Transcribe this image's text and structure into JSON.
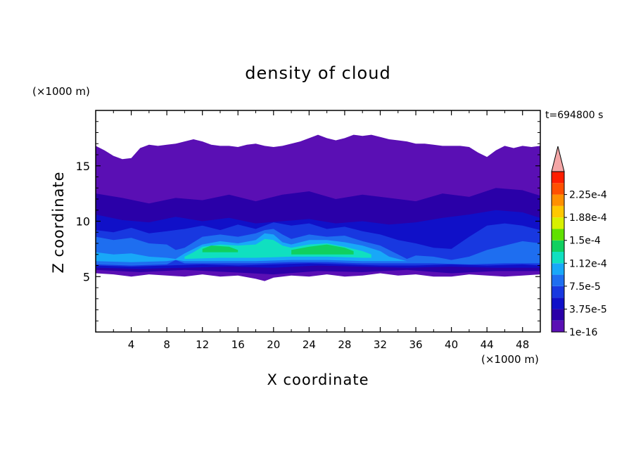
{
  "chart_data": {
    "type": "heatmap",
    "title": "density of cloud",
    "xlabel": "X coordinate",
    "ylabel": "Z coordinate",
    "x_unit": "(×1000 m)",
    "y_unit": "(×1000 m)",
    "time_label": "t=694800 s",
    "xlim": [
      0,
      50
    ],
    "ylim": [
      0,
      20
    ],
    "x_ticks": [
      4,
      8,
      12,
      16,
      20,
      24,
      28,
      32,
      36,
      40,
      44,
      48
    ],
    "y_ticks": [
      5,
      10,
      15
    ],
    "colorbar": {
      "levels": [
        1e-16,
        1.875e-05,
        3.75e-05,
        5.625e-05,
        7.5e-05,
        9.375e-05,
        0.0001125,
        0.00013125,
        0.00015,
        0.00016875,
        0.0001875,
        0.00020625,
        0.000225,
        0.00024375
      ],
      "tick_labels": [
        "1e-16",
        "3.75e-5",
        "7.5e-5",
        "1.12e-4",
        "1.5e-4",
        "1.88e-4",
        "2.25e-4"
      ],
      "colors": [
        "#5a0fb4",
        "#2a00a8",
        "#1010c8",
        "#1838e0",
        "#1e6ef0",
        "#18a8f8",
        "#10e0c0",
        "#10d060",
        "#60e000",
        "#d8f000",
        "#ffc800",
        "#ff9000",
        "#ff5000",
        "#ff1e00"
      ],
      "overflow_color": "#f4a6a6",
      "extend": "max"
    },
    "layers": [
      {
        "level_index": 0,
        "top": [
          [
            0,
            16.8
          ],
          [
            1,
            16.4
          ],
          [
            2,
            15.9
          ],
          [
            3,
            15.6
          ],
          [
            4,
            15.7
          ],
          [
            5,
            16.6
          ],
          [
            6,
            16.9
          ],
          [
            7,
            16.8
          ],
          [
            8,
            16.9
          ],
          [
            9,
            17.0
          ],
          [
            10,
            17.2
          ],
          [
            11,
            17.4
          ],
          [
            12,
            17.2
          ],
          [
            13,
            16.9
          ],
          [
            14,
            16.8
          ],
          [
            15,
            16.8
          ],
          [
            16,
            16.7
          ],
          [
            17,
            16.9
          ],
          [
            18,
            17.0
          ],
          [
            19,
            16.8
          ],
          [
            20,
            16.7
          ],
          [
            21,
            16.8
          ],
          [
            22,
            17.0
          ],
          [
            23,
            17.2
          ],
          [
            24,
            17.5
          ],
          [
            25,
            17.8
          ],
          [
            26,
            17.5
          ],
          [
            27,
            17.3
          ],
          [
            28,
            17.5
          ],
          [
            29,
            17.8
          ],
          [
            30,
            17.7
          ],
          [
            31,
            17.8
          ],
          [
            32,
            17.6
          ],
          [
            33,
            17.4
          ],
          [
            34,
            17.3
          ],
          [
            35,
            17.2
          ],
          [
            36,
            17.0
          ],
          [
            37,
            17.0
          ],
          [
            38,
            16.9
          ],
          [
            39,
            16.8
          ],
          [
            40,
            16.8
          ],
          [
            41,
            16.8
          ],
          [
            42,
            16.7
          ],
          [
            43,
            16.2
          ],
          [
            44,
            15.8
          ],
          [
            45,
            16.4
          ],
          [
            46,
            16.8
          ],
          [
            47,
            16.6
          ],
          [
            48,
            16.8
          ],
          [
            49,
            16.7
          ],
          [
            50,
            16.8
          ]
        ],
        "bottom": [
          [
            0,
            5.3
          ],
          [
            2,
            5.2
          ],
          [
            4,
            5.0
          ],
          [
            6,
            5.2
          ],
          [
            8,
            5.1
          ],
          [
            10,
            5.0
          ],
          [
            12,
            5.2
          ],
          [
            14,
            5.0
          ],
          [
            16,
            5.1
          ],
          [
            18,
            4.8
          ],
          [
            19,
            4.6
          ],
          [
            20,
            4.9
          ],
          [
            22,
            5.1
          ],
          [
            24,
            5.0
          ],
          [
            26,
            5.2
          ],
          [
            28,
            5.0
          ],
          [
            30,
            5.1
          ],
          [
            32,
            5.3
          ],
          [
            34,
            5.1
          ],
          [
            36,
            5.2
          ],
          [
            38,
            5.0
          ],
          [
            40,
            5.0
          ],
          [
            42,
            5.2
          ],
          [
            44,
            5.1
          ],
          [
            46,
            5.0
          ],
          [
            48,
            5.1
          ],
          [
            50,
            5.2
          ]
        ]
      },
      {
        "level_index": 1,
        "top": [
          [
            0,
            12.5
          ],
          [
            3,
            12.1
          ],
          [
            6,
            11.6
          ],
          [
            9,
            12.1
          ],
          [
            12,
            11.9
          ],
          [
            15,
            12.4
          ],
          [
            18,
            11.8
          ],
          [
            21,
            12.4
          ],
          [
            24,
            12.7
          ],
          [
            27,
            12.0
          ],
          [
            30,
            12.4
          ],
          [
            33,
            12.1
          ],
          [
            36,
            11.8
          ],
          [
            39,
            12.5
          ],
          [
            42,
            12.2
          ],
          [
            45,
            13.0
          ],
          [
            48,
            12.8
          ],
          [
            50,
            12.3
          ]
        ],
        "bottom": [
          [
            0,
            5.6
          ],
          [
            5,
            5.4
          ],
          [
            10,
            5.6
          ],
          [
            15,
            5.4
          ],
          [
            20,
            5.2
          ],
          [
            25,
            5.5
          ],
          [
            30,
            5.4
          ],
          [
            35,
            5.6
          ],
          [
            40,
            5.3
          ],
          [
            45,
            5.5
          ],
          [
            50,
            5.5
          ]
        ]
      },
      {
        "level_index": 2,
        "top": [
          [
            0,
            10.6
          ],
          [
            3,
            10.1
          ],
          [
            6,
            9.9
          ],
          [
            9,
            10.4
          ],
          [
            12,
            10.0
          ],
          [
            15,
            10.3
          ],
          [
            18,
            9.8
          ],
          [
            21,
            10.0
          ],
          [
            24,
            10.2
          ],
          [
            27,
            9.8
          ],
          [
            30,
            10.0
          ],
          [
            33,
            9.7
          ],
          [
            36,
            9.9
          ],
          [
            39,
            10.3
          ],
          [
            42,
            10.6
          ],
          [
            45,
            11.0
          ],
          [
            48,
            10.8
          ],
          [
            50,
            10.3
          ]
        ],
        "bottom": [
          [
            0,
            5.8
          ],
          [
            5,
            5.7
          ],
          [
            10,
            5.8
          ],
          [
            15,
            5.9
          ],
          [
            20,
            5.8
          ],
          [
            25,
            6.0
          ],
          [
            30,
            5.9
          ],
          [
            35,
            5.8
          ],
          [
            40,
            5.9
          ],
          [
            45,
            5.8
          ],
          [
            50,
            5.8
          ]
        ]
      },
      {
        "level_index": 3,
        "top": [
          [
            0,
            9.2
          ],
          [
            2,
            9.0
          ],
          [
            4,
            9.4
          ],
          [
            6,
            8.9
          ],
          [
            8,
            9.1
          ],
          [
            10,
            9.3
          ],
          [
            12,
            9.6
          ],
          [
            14,
            9.2
          ],
          [
            16,
            9.7
          ],
          [
            18,
            9.3
          ],
          [
            20,
            9.9
          ],
          [
            22,
            9.6
          ],
          [
            24,
            9.8
          ],
          [
            26,
            9.3
          ],
          [
            28,
            9.5
          ],
          [
            30,
            9.1
          ],
          [
            32,
            8.8
          ],
          [
            34,
            8.3
          ],
          [
            36,
            8.0
          ],
          [
            38,
            7.6
          ],
          [
            40,
            7.5
          ],
          [
            42,
            8.6
          ],
          [
            44,
            9.6
          ],
          [
            46,
            9.8
          ],
          [
            48,
            9.6
          ],
          [
            50,
            9.2
          ]
        ],
        "bottom": [
          [
            0,
            6.0
          ],
          [
            4,
            5.9
          ],
          [
            8,
            6.0
          ],
          [
            12,
            6.1
          ],
          [
            16,
            6.0
          ],
          [
            20,
            6.1
          ],
          [
            24,
            6.2
          ],
          [
            28,
            6.1
          ],
          [
            32,
            6.0
          ],
          [
            36,
            6.0
          ],
          [
            40,
            6.1
          ],
          [
            44,
            6.0
          ],
          [
            48,
            6.1
          ],
          [
            50,
            6.0
          ]
        ]
      },
      {
        "level_index": 4,
        "top": [
          [
            0,
            8.6
          ],
          [
            2,
            8.3
          ],
          [
            4,
            8.5
          ],
          [
            6,
            8.0
          ],
          [
            8,
            7.9
          ],
          [
            9,
            7.4
          ],
          [
            10,
            7.6
          ],
          [
            12,
            8.6
          ],
          [
            14,
            8.8
          ],
          [
            16,
            8.6
          ],
          [
            18,
            8.9
          ],
          [
            19,
            9.2
          ],
          [
            20,
            9.3
          ],
          [
            21,
            8.8
          ],
          [
            22,
            8.4
          ],
          [
            24,
            8.8
          ],
          [
            26,
            8.6
          ],
          [
            28,
            8.7
          ],
          [
            30,
            8.2
          ],
          [
            32,
            7.8
          ],
          [
            34,
            7.0
          ],
          [
            35,
            6.6
          ],
          [
            36,
            6.9
          ],
          [
            38,
            6.8
          ],
          [
            40,
            6.5
          ],
          [
            42,
            6.8
          ],
          [
            44,
            7.4
          ],
          [
            46,
            7.8
          ],
          [
            48,
            8.2
          ],
          [
            50,
            8.0
          ]
        ],
        "bottom": [
          [
            0,
            6.1
          ],
          [
            4,
            6.0
          ],
          [
            8,
            6.1
          ],
          [
            9,
            6.5
          ],
          [
            10,
            6.2
          ],
          [
            14,
            6.2
          ],
          [
            18,
            6.2
          ],
          [
            22,
            6.3
          ],
          [
            26,
            6.3
          ],
          [
            30,
            6.2
          ],
          [
            34,
            6.2
          ],
          [
            38,
            6.2
          ],
          [
            42,
            6.1
          ],
          [
            46,
            6.2
          ],
          [
            50,
            6.2
          ]
        ]
      },
      {
        "level_index": 5,
        "top": [
          [
            0,
            7.2
          ],
          [
            2,
            7.0
          ],
          [
            4,
            7.1
          ],
          [
            6,
            6.8
          ],
          [
            8,
            6.7
          ],
          [
            9,
            6.6
          ],
          [
            10,
            7.1
          ],
          [
            12,
            7.9
          ],
          [
            14,
            8.2
          ],
          [
            16,
            8.0
          ],
          [
            18,
            8.3
          ],
          [
            19,
            8.9
          ],
          [
            20,
            8.8
          ],
          [
            21,
            8.1
          ],
          [
            22,
            7.9
          ],
          [
            24,
            8.3
          ],
          [
            26,
            8.3
          ],
          [
            28,
            8.1
          ],
          [
            30,
            7.8
          ],
          [
            32,
            7.3
          ],
          [
            33,
            6.8
          ],
          [
            34,
            6.6
          ],
          [
            35,
            6.4
          ]
        ],
        "bottom": [
          [
            0,
            6.4
          ],
          [
            4,
            6.3
          ],
          [
            8,
            6.4
          ],
          [
            9,
            6.5
          ],
          [
            10,
            6.4
          ],
          [
            14,
            6.4
          ],
          [
            18,
            6.4
          ],
          [
            22,
            6.5
          ],
          [
            26,
            6.5
          ],
          [
            30,
            6.4
          ],
          [
            33,
            6.4
          ],
          [
            35,
            6.4
          ]
        ]
      },
      {
        "level_index": 6,
        "top": [
          [
            10,
            6.8
          ],
          [
            11,
            7.2
          ],
          [
            12,
            7.7
          ],
          [
            14,
            7.9
          ],
          [
            16,
            7.8
          ],
          [
            18,
            7.9
          ],
          [
            19,
            8.4
          ],
          [
            20,
            8.3
          ],
          [
            21,
            7.8
          ],
          [
            22,
            7.6
          ],
          [
            24,
            7.9
          ],
          [
            26,
            8.0
          ],
          [
            28,
            7.7
          ],
          [
            30,
            7.3
          ],
          [
            31,
            7.0
          ]
        ],
        "bottom": [
          [
            10,
            6.6
          ],
          [
            14,
            6.7
          ],
          [
            18,
            6.7
          ],
          [
            22,
            6.8
          ],
          [
            26,
            6.8
          ],
          [
            30,
            6.7
          ],
          [
            31,
            6.7
          ]
        ]
      },
      {
        "level_index": 7,
        "top": [
          [
            12,
            7.5
          ],
          [
            13,
            7.8
          ],
          [
            15,
            7.7
          ],
          [
            16,
            7.4
          ]
        ],
        "bottom": [
          [
            12,
            7.2
          ],
          [
            16,
            7.2
          ]
        ]
      },
      {
        "level_index": 7,
        "top": [
          [
            22,
            7.4
          ],
          [
            24,
            7.7
          ],
          [
            26,
            7.9
          ],
          [
            28,
            7.6
          ],
          [
            29,
            7.3
          ]
        ],
        "bottom": [
          [
            22,
            7.0
          ],
          [
            29,
            7.0
          ]
        ]
      }
    ]
  }
}
